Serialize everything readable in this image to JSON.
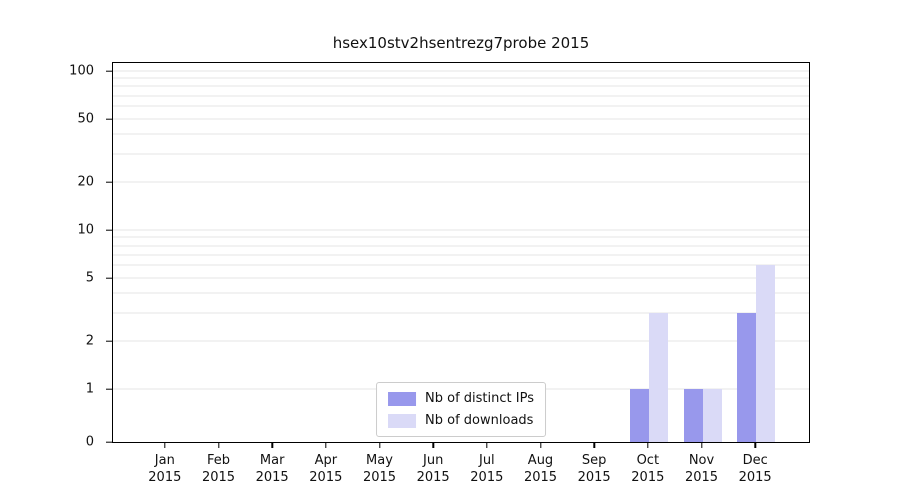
{
  "chart_data": {
    "type": "bar",
    "title": "hsex10stv2hsentrezg7probe 2015",
    "categories": [
      {
        "month": "Jan",
        "year": "2015"
      },
      {
        "month": "Feb",
        "year": "2015"
      },
      {
        "month": "Mar",
        "year": "2015"
      },
      {
        "month": "Apr",
        "year": "2015"
      },
      {
        "month": "May",
        "year": "2015"
      },
      {
        "month": "Jun",
        "year": "2015"
      },
      {
        "month": "Jul",
        "year": "2015"
      },
      {
        "month": "Aug",
        "year": "2015"
      },
      {
        "month": "Sep",
        "year": "2015"
      },
      {
        "month": "Oct",
        "year": "2015"
      },
      {
        "month": "Nov",
        "year": "2015"
      },
      {
        "month": "Dec",
        "year": "2015"
      }
    ],
    "series": [
      {
        "name": "Nb of distinct IPs",
        "color": "#9898ec",
        "values": [
          0,
          0,
          0,
          0,
          0,
          0,
          0,
          0,
          0,
          1,
          1,
          3
        ]
      },
      {
        "name": "Nb of downloads",
        "color": "#dadaf7",
        "values": [
          0,
          0,
          0,
          0,
          0,
          0,
          0,
          0,
          0,
          3,
          1,
          6
        ]
      }
    ],
    "yscale": "symlog",
    "ylim": [
      0,
      100
    ],
    "yticks": [
      0,
      1,
      2,
      5,
      10,
      20,
      50,
      100
    ],
    "y_gridlines": [
      1,
      2,
      3,
      4,
      5,
      6,
      7,
      8,
      9,
      10,
      20,
      30,
      40,
      50,
      60,
      70,
      80,
      90,
      100
    ],
    "grid": true,
    "legend_position": "bottom-center"
  }
}
